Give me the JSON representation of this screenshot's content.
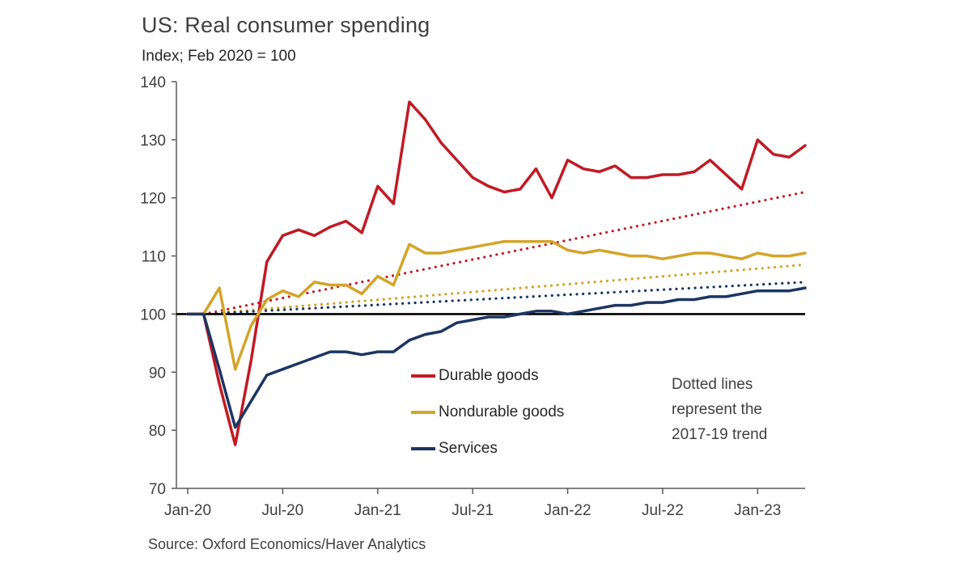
{
  "header": {
    "title": "US: Real consumer spending",
    "subtitle": "Index; Feb 2020 = 100"
  },
  "footer": {
    "source": "Source: Oxford Economics/Haver Analytics"
  },
  "annotation": {
    "line1": "Dotted lines",
    "line2": "represent the",
    "line3": "2017-19 trend"
  },
  "colors": {
    "durable": "#c11a24",
    "nondurable": "#d3a429",
    "services": "#1c3663",
    "baseline": "#000000",
    "axis": "#595959",
    "text": "#404040"
  },
  "chart_data": {
    "type": "line",
    "title": "US: Real consumer spending",
    "subtitle": "Index; Feb 2020 = 100",
    "xlabel": "",
    "ylabel": "Index; Feb 2020 = 100",
    "ylim": [
      70,
      140
    ],
    "y_ticks": [
      70,
      80,
      90,
      100,
      110,
      120,
      130,
      140
    ],
    "baseline": 100,
    "grid": false,
    "legend_position": "inside-lower-center",
    "x_tick_labels": [
      "Jan-20",
      "Jul-20",
      "Jan-21",
      "Jul-21",
      "Jan-22",
      "Jul-22",
      "Jan-23"
    ],
    "x_tick_month_index": [
      0,
      6,
      12,
      18,
      24,
      30,
      36
    ],
    "months": [
      "Jan-20",
      "Feb-20",
      "Mar-20",
      "Apr-20",
      "May-20",
      "Jun-20",
      "Jul-20",
      "Aug-20",
      "Sep-20",
      "Oct-20",
      "Nov-20",
      "Dec-20",
      "Jan-21",
      "Feb-21",
      "Mar-21",
      "Apr-21",
      "May-21",
      "Jun-21",
      "Jul-21",
      "Aug-21",
      "Sep-21",
      "Oct-21",
      "Nov-21",
      "Dec-21",
      "Jan-22",
      "Feb-22",
      "Mar-22",
      "Apr-22",
      "May-22",
      "Jun-22",
      "Jul-22",
      "Aug-22",
      "Sep-22",
      "Oct-22",
      "Nov-22",
      "Dec-22",
      "Jan-23",
      "Feb-23",
      "Mar-23",
      "Apr-23"
    ],
    "series": [
      {
        "name": "Durable goods",
        "color": "#c11a24",
        "values": [
          100,
          100,
          88,
          77.5,
          92,
          109,
          113.5,
          114.5,
          113.5,
          115,
          116,
          114,
          122,
          119,
          136.5,
          133.5,
          129.5,
          126.5,
          123.5,
          122,
          121,
          121.5,
          125,
          120,
          126.5,
          125,
          124.5,
          125.5,
          123.5,
          123.5,
          124,
          124,
          124.5,
          126.5,
          124,
          121.5,
          130,
          127.5,
          127,
          129
        ]
      },
      {
        "name": "Nondurable goods",
        "color": "#d3a429",
        "values": [
          100,
          100,
          104.5,
          90.5,
          98,
          102.5,
          104,
          103,
          105.5,
          105,
          105,
          103.5,
          106.5,
          105,
          112,
          110.5,
          110.5,
          111,
          111.5,
          112,
          112.5,
          112.5,
          112.5,
          112.5,
          111,
          110.5,
          111,
          110.5,
          110,
          110,
          109.5,
          110,
          110.5,
          110.5,
          110,
          109.5,
          110.5,
          110,
          110,
          110.5
        ]
      },
      {
        "name": "Services",
        "color": "#1c3663",
        "values": [
          100,
          100,
          90.5,
          80.5,
          85,
          89.5,
          90.5,
          91.5,
          92.5,
          93.5,
          93.5,
          93,
          93.5,
          93.5,
          95.5,
          96.5,
          97,
          98.5,
          99,
          99.5,
          99.5,
          100,
          100.5,
          100.5,
          100,
          100.5,
          101,
          101.5,
          101.5,
          102,
          102,
          102.5,
          102.5,
          103,
          103,
          103.5,
          104,
          104,
          104,
          104.5
        ]
      }
    ],
    "trend_series": [
      {
        "name": "Durable goods 2017-19 trend",
        "color": "#c11a24",
        "style": "dotted",
        "start_month_index": 1,
        "start_value": 100,
        "end_value": 121
      },
      {
        "name": "Nondurable goods 2017-19 trend",
        "color": "#d3a429",
        "style": "dotted",
        "start_month_index": 1,
        "start_value": 100,
        "end_value": 108.5
      },
      {
        "name": "Services 2017-19 trend",
        "color": "#1c3663",
        "style": "dotted",
        "start_month_index": 1,
        "start_value": 100,
        "end_value": 105.5
      }
    ]
  }
}
